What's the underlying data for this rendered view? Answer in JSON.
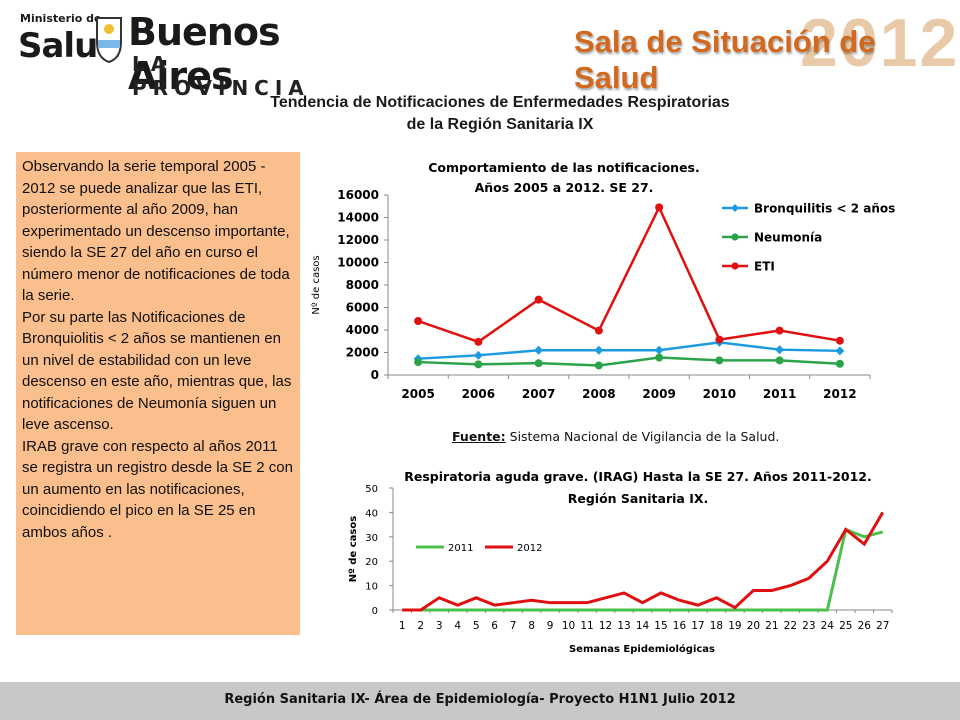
{
  "header": {
    "logo": {
      "line1": "Ministerio de",
      "line2": "Salud",
      "brand": "Buenos Aires",
      "brand_sub": "LA PROVINCIA"
    },
    "banner_title": "Sala de Situación de Salud",
    "banner_year": "2012"
  },
  "main_title": {
    "line1": "Tendencia de Notificaciones de Enfermedades Respiratorias",
    "line2": "de la Región Sanitaria IX"
  },
  "text_panel": {
    "p1": "Observando la serie temporal 2005 - 2012 se puede analizar que las ETI, posteriormente al año 2009, han experimentado un descenso importante, siendo la SE 27 del año en curso el número menor de notificaciones de toda la serie.",
    "p2": "Por su parte las Notificaciones de Bronquiolitis < 2 años  se mantienen en un nivel de estabilidad con un leve descenso en este año, mientras que, las notificaciones de Neumonía siguen un leve ascenso.",
    "p3": "IRAB grave con respecto al años 2011 se registra un registro desde la SE 2 con un aumento en las notificaciones, coincidiendo el pico en la SE 25 en ambos años ."
  },
  "source": {
    "label": "Fuente:",
    "text": " Sistema Nacional de Vigilancia de la Salud."
  },
  "footer": "Región Sanitaria IX- Área de Epidemiología-  Proyecto H1N1  Julio 2012",
  "colors": {
    "bronq": "#1e9be0",
    "neumonia": "#2aa34a",
    "eti": "#e01010",
    "y2011": "#4cc04c",
    "y2012": "#e01010",
    "panel": "#fbbe8d"
  },
  "chart_data": [
    {
      "type": "line",
      "title": "Comportamiento de las notificaciones. Años 2005 a 2012.  SE 27.",
      "title_lines": [
        "Comportamiento de las notificaciones.",
        "Años 2005 a 2012.  SE 27."
      ],
      "xlabel": "",
      "ylabel": "Nº de casos",
      "categories": [
        "2005",
        "2006",
        "2007",
        "2008",
        "2009",
        "2010",
        "2011",
        "2012"
      ],
      "ylim": [
        0,
        16000
      ],
      "yticks": [
        "0",
        "2000",
        "4000",
        "6000",
        "8000",
        "10000",
        "12000",
        "14000",
        "16000"
      ],
      "legend_position": "top-right",
      "grid": false,
      "series": [
        {
          "name": "Bronquilitis < 2 años",
          "marker": "diamond",
          "values": [
            1450,
            1750,
            2200,
            2200,
            2200,
            2900,
            2250,
            2150
          ]
        },
        {
          "name": "Neumonía",
          "marker": "circle",
          "values": [
            1150,
            950,
            1050,
            850,
            1550,
            1300,
            1300,
            1000
          ]
        },
        {
          "name": "ETI",
          "marker": "circle",
          "values": [
            4800,
            2950,
            6700,
            3950,
            14900,
            3150,
            3950,
            3050
          ]
        }
      ]
    },
    {
      "type": "line",
      "title": "Respiratoria aguda grave. (IRAG) Hasta la SE 27. Años 2011-2012. Región Sanitaria IX.",
      "title_lines": [
        "Respiratoria aguda grave. (IRAG) Hasta la SE 27. Años 2011-2012.",
        "Región Sanitaria IX."
      ],
      "xlabel": "Semanas Epidemiológicas",
      "ylabel": "Nº de casos",
      "categories": [
        "1",
        "2",
        "3",
        "4",
        "5",
        "6",
        "7",
        "8",
        "9",
        "10",
        "11",
        "12",
        "13",
        "14",
        "15",
        "16",
        "17",
        "18",
        "19",
        "20",
        "21",
        "22",
        "23",
        "24",
        "25",
        "26",
        "27"
      ],
      "ylim": [
        0,
        50
      ],
      "yticks": [
        "0",
        "10",
        "20",
        "30",
        "40",
        "50"
      ],
      "legend_position": "left",
      "grid": false,
      "series": [
        {
          "name": "2011",
          "values": [
            0,
            0,
            0,
            0,
            0,
            0,
            0,
            0,
            0,
            0,
            0,
            0,
            0,
            0,
            0,
            0,
            0,
            0,
            0,
            0,
            0,
            0,
            0,
            0,
            33,
            30,
            32
          ]
        },
        {
          "name": "2012",
          "values": [
            0,
            0,
            5,
            2,
            5,
            2,
            3,
            4,
            3,
            3,
            3,
            5,
            7,
            3,
            7,
            4,
            2,
            5,
            1,
            8,
            8,
            10,
            13,
            20,
            33,
            27,
            40
          ]
        }
      ]
    }
  ]
}
